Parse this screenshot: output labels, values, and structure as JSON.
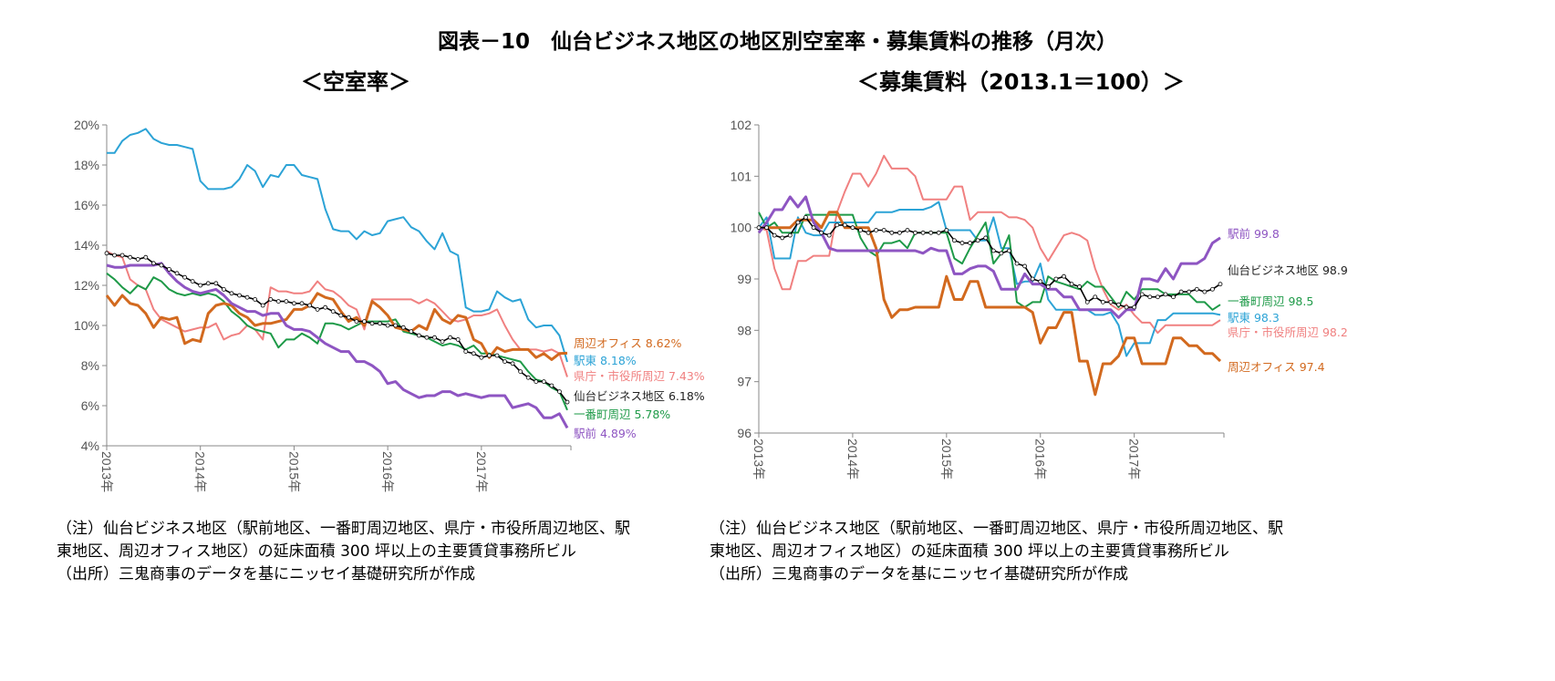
{
  "title": "図表－10　仙台ビジネス地区の地区別空室率・募集賃料の推移（月次）",
  "notes_left": [
    "（注）仙台ビジネス地区（駅前地区、一番町周辺地区、県庁・市役所周辺地区、駅",
    "東地区、周辺オフィス地区）の延床面積 300 坪以上の主要賃貸事務所ビル",
    "（出所）三鬼商事のデータを基にニッセイ基礎研究所が作成"
  ],
  "notes_right": [
    "（注）仙台ビジネス地区（駅前地区、一番町周辺地区、県庁・市役所周辺地区、駅",
    "東地区、周辺オフィス地区）の延床面積 300 坪以上の主要賃貸事務所ビル",
    "（出所）三鬼商事のデータを基にニッセイ基礎研究所が作成"
  ],
  "chart_data": [
    {
      "type": "line",
      "title": "＜空室率＞",
      "x_start": "2013-01",
      "x_frequency": "monthly",
      "x_tick_labels": [
        "2013年",
        "2014年",
        "2015年",
        "2016年",
        "2017年"
      ],
      "y_tick_labels": [
        "4%",
        "6%",
        "8%",
        "10%",
        "12%",
        "14%",
        "16%",
        "18%",
        "20%"
      ],
      "ylim": [
        4,
        20
      ],
      "y_unit": "%",
      "grid": false,
      "legend": "end-labels-right",
      "series": [
        {
          "name": "駅東",
          "end_label": "駅東 8.18%",
          "color": "#2ca3d6",
          "values": [
            18.6,
            18.6,
            19.2,
            19.5,
            19.6,
            19.8,
            19.3,
            19.1,
            19.0,
            19.0,
            18.9,
            18.8,
            17.2,
            16.8,
            16.8,
            16.8,
            16.9,
            17.3,
            18.0,
            17.7,
            16.9,
            17.5,
            17.4,
            18.0,
            18.0,
            17.5,
            17.4,
            17.3,
            15.8,
            14.8,
            14.7,
            14.7,
            14.3,
            14.7,
            14.5,
            14.6,
            15.2,
            15.3,
            15.4,
            14.9,
            14.7,
            14.2,
            13.8,
            14.6,
            13.7,
            13.5,
            10.9,
            10.7,
            10.7,
            10.8,
            11.7,
            11.4,
            11.2,
            11.3,
            10.3,
            9.9,
            10.0,
            10.0,
            9.5,
            8.18
          ]
        },
        {
          "name": "県庁・市役所周辺",
          "end_label": "県庁・市役所周辺 7.43%",
          "color": "#f08080",
          "values": [
            13.7,
            13.5,
            13.4,
            12.3,
            12.0,
            11.8,
            10.8,
            10.3,
            10.1,
            9.9,
            9.7,
            9.8,
            9.9,
            9.9,
            10.1,
            9.3,
            9.5,
            9.6,
            10.0,
            9.8,
            9.3,
            11.9,
            11.7,
            11.7,
            11.6,
            11.6,
            11.7,
            12.2,
            11.8,
            11.7,
            11.4,
            11.0,
            10.8,
            9.8,
            11.3,
            11.3,
            11.3,
            11.3,
            11.3,
            11.3,
            11.1,
            11.3,
            11.1,
            10.7,
            10.3,
            10.2,
            10.3,
            10.5,
            10.5,
            10.6,
            10.8,
            10.0,
            9.3,
            8.8,
            8.8,
            8.8,
            8.7,
            8.8,
            8.6,
            7.43
          ]
        },
        {
          "name": "一番町周辺",
          "end_label": "一番町周辺 5.78%",
          "color": "#1e9a48",
          "values": [
            12.6,
            12.3,
            11.9,
            11.6,
            12.0,
            11.8,
            12.4,
            12.2,
            11.8,
            11.6,
            11.5,
            11.6,
            11.5,
            11.6,
            11.5,
            11.2,
            10.7,
            10.4,
            10.0,
            9.8,
            9.7,
            9.6,
            8.9,
            9.3,
            9.3,
            9.6,
            9.4,
            9.1,
            10.1,
            10.1,
            10.0,
            9.8,
            10.0,
            10.2,
            10.2,
            10.2,
            10.2,
            10.3,
            9.7,
            9.6,
            9.5,
            9.4,
            9.2,
            9.0,
            9.1,
            9.0,
            8.8,
            9.0,
            8.6,
            8.6,
            8.5,
            8.4,
            8.3,
            8.2,
            7.7,
            7.3,
            7.2,
            6.9,
            6.7,
            5.78
          ]
        },
        {
          "name": "周辺オフィス",
          "end_label": "周辺オフィス 8.62%",
          "color": "#d2691e",
          "values": [
            11.5,
            11.0,
            11.5,
            11.1,
            11.0,
            10.6,
            9.9,
            10.4,
            10.3,
            10.4,
            9.1,
            9.3,
            9.2,
            10.6,
            11.0,
            11.1,
            11.0,
            10.6,
            10.4,
            10.0,
            10.1,
            10.1,
            10.2,
            10.3,
            10.8,
            10.8,
            11.0,
            11.6,
            11.4,
            11.3,
            10.7,
            10.2,
            10.4,
            10.0,
            11.2,
            10.9,
            10.5,
            9.9,
            9.8,
            9.7,
            10.0,
            9.8,
            10.8,
            10.3,
            10.1,
            10.5,
            10.4,
            9.3,
            9.1,
            8.4,
            8.9,
            8.7,
            8.8,
            8.8,
            8.8,
            8.4,
            8.6,
            8.3,
            8.6,
            8.62
          ]
        },
        {
          "name": "駅前",
          "end_label": "駅前 4.89%",
          "color": "#8e55c2",
          "values": [
            13.0,
            12.9,
            12.9,
            13.0,
            13.0,
            13.0,
            13.0,
            13.1,
            12.6,
            12.2,
            11.9,
            11.7,
            11.6,
            11.7,
            11.8,
            11.5,
            11.1,
            10.9,
            10.7,
            10.7,
            10.5,
            10.6,
            10.6,
            10.0,
            9.8,
            9.8,
            9.7,
            9.4,
            9.1,
            8.9,
            8.7,
            8.7,
            8.2,
            8.2,
            8.0,
            7.7,
            7.1,
            7.2,
            6.8,
            6.6,
            6.4,
            6.5,
            6.5,
            6.7,
            6.7,
            6.5,
            6.6,
            6.5,
            6.4,
            6.5,
            6.5,
            6.5,
            5.9,
            6.0,
            6.1,
            5.9,
            5.4,
            5.4,
            5.6,
            4.89
          ]
        },
        {
          "name": "仙台ビジネス地区",
          "end_label": "仙台ビジネス地区 6.18%",
          "color": "#000000",
          "values": [
            13.6,
            13.5,
            13.5,
            13.4,
            13.3,
            13.4,
            13.1,
            13.0,
            12.8,
            12.6,
            12.4,
            12.2,
            12.0,
            12.1,
            12.1,
            11.8,
            11.6,
            11.5,
            11.4,
            11.3,
            11.0,
            11.3,
            11.2,
            11.2,
            11.1,
            11.1,
            11.0,
            10.8,
            10.9,
            10.7,
            10.5,
            10.4,
            10.2,
            10.2,
            10.1,
            10.1,
            10.0,
            10.0,
            9.9,
            9.7,
            9.5,
            9.4,
            9.4,
            9.2,
            9.4,
            9.3,
            8.7,
            8.6,
            8.4,
            8.5,
            8.5,
            8.2,
            8.1,
            7.7,
            7.4,
            7.2,
            7.2,
            7.0,
            6.7,
            6.18
          ]
        }
      ]
    },
    {
      "type": "line",
      "title": "＜募集賃料（2013.1＝100）＞",
      "x_start": "2013-01",
      "x_frequency": "monthly",
      "x_tick_labels": [
        "2013年",
        "2014年",
        "2015年",
        "2016年",
        "2017年"
      ],
      "y_tick_labels": [
        "96",
        "97",
        "98",
        "99",
        "100",
        "101",
        "102"
      ],
      "ylim": [
        96,
        102
      ],
      "grid": false,
      "legend": "end-labels-right",
      "series": [
        {
          "name": "県庁・市役所周辺",
          "end_label": "県庁・市役所周辺 98.2",
          "color": "#f08080",
          "values": [
            100.0,
            99.95,
            99.2,
            98.8,
            98.8,
            99.35,
            99.35,
            99.45,
            99.45,
            99.45,
            100.3,
            100.7,
            101.05,
            101.05,
            100.8,
            101.05,
            101.4,
            101.15,
            101.15,
            101.15,
            101.0,
            100.55,
            100.55,
            100.55,
            100.55,
            100.8,
            100.8,
            100.15,
            100.3,
            100.3,
            100.3,
            100.3,
            100.2,
            100.2,
            100.15,
            100.0,
            99.6,
            99.35,
            99.6,
            99.85,
            99.9,
            99.85,
            99.75,
            99.2,
            98.8,
            98.5,
            98.4,
            98.5,
            98.3,
            98.15,
            98.15,
            97.95,
            98.1,
            98.1,
            98.1,
            98.1,
            98.1,
            98.1,
            98.1,
            98.2
          ]
        },
        {
          "name": "駅東",
          "end_label": "駅東 98.3",
          "color": "#2ca3d6",
          "values": [
            100.0,
            100.2,
            99.4,
            99.4,
            99.4,
            100.2,
            99.9,
            99.85,
            99.85,
            100.1,
            100.1,
            100.1,
            100.1,
            100.1,
            100.1,
            100.3,
            100.3,
            100.3,
            100.35,
            100.35,
            100.35,
            100.35,
            100.4,
            100.5,
            99.95,
            99.95,
            99.95,
            99.95,
            99.75,
            99.75,
            100.2,
            99.6,
            99.6,
            98.9,
            98.95,
            98.95,
            99.3,
            98.6,
            98.4,
            98.4,
            98.4,
            98.4,
            98.4,
            98.3,
            98.3,
            98.35,
            98.1,
            97.5,
            97.75,
            97.75,
            97.75,
            98.2,
            98.2,
            98.33,
            98.33,
            98.33,
            98.33,
            98.33,
            98.33,
            98.3
          ]
        },
        {
          "name": "一番町周辺",
          "end_label": "一番町周辺 98.5",
          "color": "#1e9a48",
          "values": [
            100.3,
            100.0,
            100.1,
            99.9,
            99.9,
            99.9,
            100.25,
            100.25,
            100.25,
            100.25,
            100.25,
            100.25,
            100.25,
            99.8,
            99.55,
            99.45,
            99.7,
            99.7,
            99.75,
            99.6,
            99.9,
            99.9,
            99.9,
            99.9,
            99.9,
            99.4,
            99.3,
            99.6,
            99.85,
            100.1,
            99.3,
            99.5,
            99.85,
            98.55,
            98.45,
            98.55,
            98.55,
            99.05,
            98.95,
            98.9,
            98.85,
            98.8,
            98.95,
            98.85,
            98.85,
            98.65,
            98.45,
            98.75,
            98.6,
            98.8,
            98.8,
            98.8,
            98.7,
            98.7,
            98.7,
            98.7,
            98.55,
            98.55,
            98.4,
            98.5
          ]
        },
        {
          "name": "周辺オフィス",
          "end_label": "周辺オフィス 97.4",
          "color": "#d2691e",
          "values": [
            100.0,
            100.0,
            100.0,
            100.0,
            100.0,
            100.15,
            100.15,
            100.15,
            100.0,
            100.3,
            100.3,
            100.0,
            100.0,
            100.0,
            100.0,
            99.6,
            98.6,
            98.25,
            98.4,
            98.4,
            98.45,
            98.45,
            98.45,
            98.45,
            99.05,
            98.6,
            98.6,
            98.95,
            98.95,
            98.45,
            98.45,
            98.45,
            98.45,
            98.45,
            98.45,
            98.35,
            97.75,
            98.05,
            98.05,
            98.35,
            98.35,
            97.4,
            97.4,
            96.75,
            97.35,
            97.35,
            97.5,
            97.85,
            97.85,
            97.35,
            97.35,
            97.35,
            97.35,
            97.85,
            97.85,
            97.7,
            97.7,
            97.55,
            97.55,
            97.4
          ]
        },
        {
          "name": "駅前",
          "end_label": "駅前 99.8",
          "color": "#8e55c2",
          "values": [
            99.9,
            100.1,
            100.35,
            100.35,
            100.6,
            100.4,
            100.6,
            100.1,
            99.9,
            99.6,
            99.55,
            99.55,
            99.55,
            99.55,
            99.55,
            99.55,
            99.55,
            99.55,
            99.55,
            99.55,
            99.55,
            99.5,
            99.6,
            99.55,
            99.55,
            99.1,
            99.1,
            99.2,
            99.25,
            99.25,
            99.15,
            98.8,
            98.8,
            98.8,
            99.1,
            98.9,
            98.9,
            98.8,
            98.8,
            98.65,
            98.65,
            98.4,
            98.4,
            98.4,
            98.4,
            98.4,
            98.25,
            98.4,
            98.4,
            99.0,
            99.0,
            98.95,
            99.2,
            99.0,
            99.3,
            99.3,
            99.3,
            99.4,
            99.7,
            99.8
          ]
        },
        {
          "name": "仙台ビジネス地区",
          "end_label": "仙台ビジネス地区 98.9",
          "color": "#000000",
          "values": [
            100.0,
            100.0,
            99.85,
            99.8,
            99.85,
            100.1,
            100.2,
            100.0,
            99.9,
            99.85,
            100.05,
            100.05,
            100.0,
            99.95,
            99.9,
            99.95,
            99.95,
            99.9,
            99.9,
            99.95,
            99.9,
            99.9,
            99.9,
            99.9,
            99.95,
            99.75,
            99.7,
            99.7,
            99.75,
            99.8,
            99.55,
            99.5,
            99.55,
            99.3,
            99.25,
            99.0,
            98.95,
            98.85,
            99.0,
            99.05,
            98.9,
            98.85,
            98.55,
            98.65,
            98.55,
            98.55,
            98.5,
            98.45,
            98.45,
            98.7,
            98.65,
            98.65,
            98.7,
            98.65,
            98.75,
            98.75,
            98.8,
            98.75,
            98.8,
            98.9
          ]
        }
      ]
    }
  ]
}
